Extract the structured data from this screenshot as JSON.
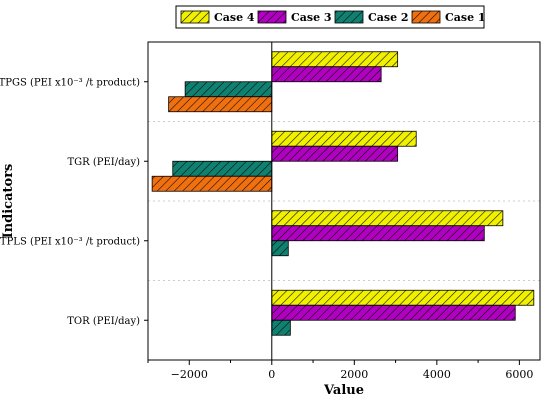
{
  "chart_data": {
    "type": "bar",
    "orientation": "horizontal",
    "categories": [
      "TPGS (PEI x10⁻³ /t product)",
      "TGR (PEI/day)",
      "TPLS (PEI  x10⁻³ /t product)",
      "TOR (PEI/day)"
    ],
    "series": [
      {
        "name": "Case 4",
        "color": "#f0f000",
        "values": [
          3050,
          3500,
          5600,
          6350
        ]
      },
      {
        "name": "Case 3",
        "color": "#b000c0",
        "values": [
          2650,
          3050,
          5150,
          5900
        ]
      },
      {
        "name": "Case 2",
        "color": "#108070",
        "values": [
          -2100,
          -2400,
          400,
          450
        ]
      },
      {
        "name": "Case 1",
        "color": "#f07010",
        "values": [
          -2500,
          -2900,
          0,
          0
        ]
      }
    ],
    "xlabel": "Value",
    "ylabel": "Indicators",
    "xlim": [
      -3000,
      6500
    ],
    "xticks": [
      -2000,
      0,
      2000,
      4000,
      6000
    ],
    "legend_position": "top",
    "grid": "dashed horizontal separators"
  }
}
